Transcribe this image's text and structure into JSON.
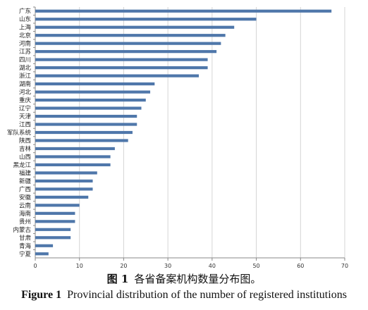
{
  "chart_data": {
    "type": "bar",
    "orientation": "horizontal",
    "categories": [
      "广东",
      "山东",
      "上海",
      "北京",
      "河南",
      "江苏",
      "四川",
      "湖北",
      "浙江",
      "湖南",
      "河北",
      "重庆",
      "辽宁",
      "天津",
      "江西",
      "军队系统",
      "陕西",
      "吉林",
      "山西",
      "黑龙江",
      "福建",
      "新疆",
      "广西",
      "安徽",
      "云南",
      "海南",
      "贵州",
      "内蒙古",
      "甘肃",
      "青海",
      "宁夏"
    ],
    "values": [
      67,
      50,
      45,
      43,
      42,
      41,
      39,
      39,
      37,
      27,
      26,
      25,
      24,
      23,
      23,
      22,
      21,
      18,
      17,
      17,
      14,
      13,
      13,
      12,
      10,
      9,
      9,
      8,
      8,
      4,
      3
    ],
    "xlim": [
      0,
      70
    ],
    "xticks": [
      "0",
      "10",
      "20",
      "30",
      "40",
      "50",
      "60",
      "70"
    ],
    "grid": "vertical",
    "bar_color": "#4f77aa",
    "title": "",
    "xlabel": "",
    "ylabel": ""
  },
  "caption": {
    "cn_label": "图 1",
    "cn_text": "各省备案机构数量分布图。",
    "en_label": "Figure 1",
    "en_text": "Provincial distribution of the number of registered institutions"
  }
}
